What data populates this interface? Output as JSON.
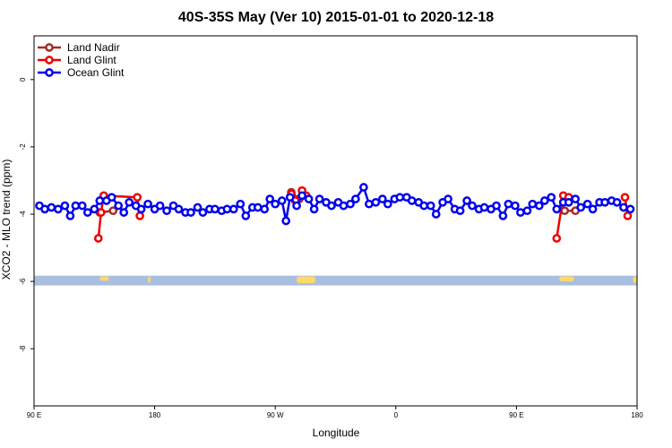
{
  "chart_data": {
    "type": "line",
    "title": "40S-35S May (Ver 10)   2015-01-01 to 2020-12-18",
    "xlabel": "Longitude",
    "ylabel": "XCO2 - MLO trend (ppm)",
    "x_ticks": [
      {
        "value": 90,
        "label": "90 E"
      },
      {
        "value": 180,
        "label": "180"
      },
      {
        "value": 270,
        "label": "90 W"
      },
      {
        "value": 360,
        "label": "0"
      },
      {
        "value": 450,
        "label": "90 E"
      },
      {
        "value": 540,
        "label": "180"
      }
    ],
    "y_ticks": [
      {
        "value": 0,
        "label": "0"
      },
      {
        "value": -2,
        "label": "-2"
      },
      {
        "value": -4,
        "label": "-4"
      },
      {
        "value": -6,
        "label": "-6"
      },
      {
        "value": -8,
        "label": "-8"
      }
    ],
    "xlim": [
      90,
      540
    ],
    "ylim": [
      -9.7,
      1.3
    ],
    "legend_position": "top-left",
    "landmask": {
      "y_range": [
        -5.83,
        -6.12
      ],
      "ocean_color": "#a9bfe0",
      "land_color": "#fdd96b",
      "land_segments": [
        [
          139,
          146,
          -5.85,
          -5.98
        ],
        [
          175,
          177,
          -5.85,
          -6.05
        ],
        [
          286,
          300,
          -5.85,
          -6.05
        ],
        [
          482,
          493,
          -5.85,
          -6.0
        ],
        [
          537,
          540,
          -5.85,
          -6.05
        ]
      ]
    },
    "series": [
      {
        "name": "Land Nadir",
        "color": "#a52a2a",
        "segments": [
          [
            [
              139,
              -3.95
            ],
            [
              149,
              -3.9
            ]
          ],
          [
            [
              282,
              -3.35
            ],
            [
              288,
              -3.55
            ]
          ],
          [
            [
              486,
              -3.9
            ],
            [
              494,
              -3.9
            ]
          ]
        ]
      },
      {
        "name": "Land Glint",
        "color": "#ee0000",
        "segments": [
          [
            [
              138,
              -4.72
            ],
            [
              140,
              -3.95
            ],
            [
              142,
              -3.45
            ],
            [
              167,
              -3.5
            ],
            [
              169,
              -4.05
            ]
          ],
          [
            [
              282,
              -3.4
            ],
            [
              285,
              -3.6
            ],
            [
              290,
              -3.3
            ],
            [
              293,
              -3.45
            ]
          ],
          [
            [
              480,
              -4.72
            ],
            [
              485,
              -3.45
            ],
            [
              489,
              -3.5
            ]
          ],
          [
            [
              531,
              -3.5
            ],
            [
              533,
              -4.05
            ]
          ]
        ]
      },
      {
        "name": "Ocean Glint",
        "color": "#0000ee",
        "segments": [
          [
            [
              94,
              -3.75
            ],
            [
              98,
              -3.85
            ],
            [
              103,
              -3.8
            ],
            [
              108,
              -3.85
            ],
            [
              113,
              -3.75
            ],
            [
              117,
              -4.05
            ],
            [
              121,
              -3.75
            ],
            [
              126,
              -3.75
            ],
            [
              130,
              -3.95
            ],
            [
              135,
              -3.85
            ],
            [
              139,
              -3.6
            ],
            [
              144,
              -3.6
            ],
            [
              148,
              -3.5
            ],
            [
              153,
              -3.75
            ],
            [
              157,
              -3.95
            ],
            [
              161,
              -3.65
            ],
            [
              166,
              -3.75
            ],
            [
              170,
              -3.85
            ],
            [
              175,
              -3.7
            ],
            [
              180,
              -3.85
            ],
            [
              184,
              -3.75
            ],
            [
              189,
              -3.9
            ],
            [
              194,
              -3.75
            ],
            [
              198,
              -3.85
            ],
            [
              203,
              -3.95
            ],
            [
              207,
              -3.95
            ],
            [
              212,
              -3.8
            ],
            [
              216,
              -3.95
            ],
            [
              221,
              -3.85
            ],
            [
              225,
              -3.85
            ],
            [
              230,
              -3.9
            ],
            [
              234,
              -3.85
            ],
            [
              239,
              -3.85
            ],
            [
              244,
              -3.7
            ],
            [
              248,
              -4.05
            ],
            [
              253,
              -3.8
            ],
            [
              257,
              -3.8
            ],
            [
              262,
              -3.85
            ],
            [
              266,
              -3.55
            ],
            [
              270,
              -3.7
            ],
            [
              275,
              -3.6
            ],
            [
              278,
              -4.2
            ],
            [
              281,
              -3.5
            ],
            [
              286,
              -3.75
            ],
            [
              290,
              -3.45
            ],
            [
              295,
              -3.55
            ],
            [
              299,
              -3.85
            ],
            [
              303,
              -3.55
            ],
            [
              308,
              -3.65
            ],
            [
              312,
              -3.75
            ],
            [
              317,
              -3.65
            ],
            [
              321,
              -3.75
            ],
            [
              326,
              -3.7
            ],
            [
              330,
              -3.55
            ],
            [
              336,
              -3.2
            ],
            [
              340,
              -3.7
            ],
            [
              345,
              -3.65
            ],
            [
              350,
              -3.55
            ],
            [
              354,
              -3.7
            ],
            [
              359,
              -3.55
            ],
            [
              363,
              -3.5
            ],
            [
              368,
              -3.5
            ],
            [
              372,
              -3.6
            ],
            [
              377,
              -3.65
            ],
            [
              381,
              -3.75
            ],
            [
              386,
              -3.75
            ],
            [
              390,
              -4.0
            ],
            [
              395,
              -3.65
            ],
            [
              399,
              -3.55
            ],
            [
              404,
              -3.85
            ],
            [
              408,
              -3.9
            ],
            [
              413,
              -3.6
            ],
            [
              417,
              -3.75
            ],
            [
              422,
              -3.85
            ],
            [
              426,
              -3.8
            ],
            [
              431,
              -3.85
            ],
            [
              435,
              -3.75
            ],
            [
              440,
              -4.05
            ],
            [
              444,
              -3.7
            ],
            [
              449,
              -3.75
            ],
            [
              453,
              -3.95
            ],
            [
              458,
              -3.9
            ],
            [
              462,
              -3.7
            ],
            [
              467,
              -3.75
            ],
            [
              471,
              -3.6
            ],
            [
              476,
              -3.5
            ],
            [
              480,
              -3.85
            ],
            [
              485,
              -3.65
            ],
            [
              489,
              -3.65
            ],
            [
              494,
              -3.55
            ],
            [
              498,
              -3.8
            ],
            [
              503,
              -3.7
            ],
            [
              507,
              -3.85
            ],
            [
              512,
              -3.65
            ],
            [
              516,
              -3.65
            ],
            [
              521,
              -3.6
            ],
            [
              525,
              -3.65
            ],
            [
              530,
              -3.8
            ],
            [
              535,
              -3.85
            ]
          ]
        ]
      }
    ]
  }
}
